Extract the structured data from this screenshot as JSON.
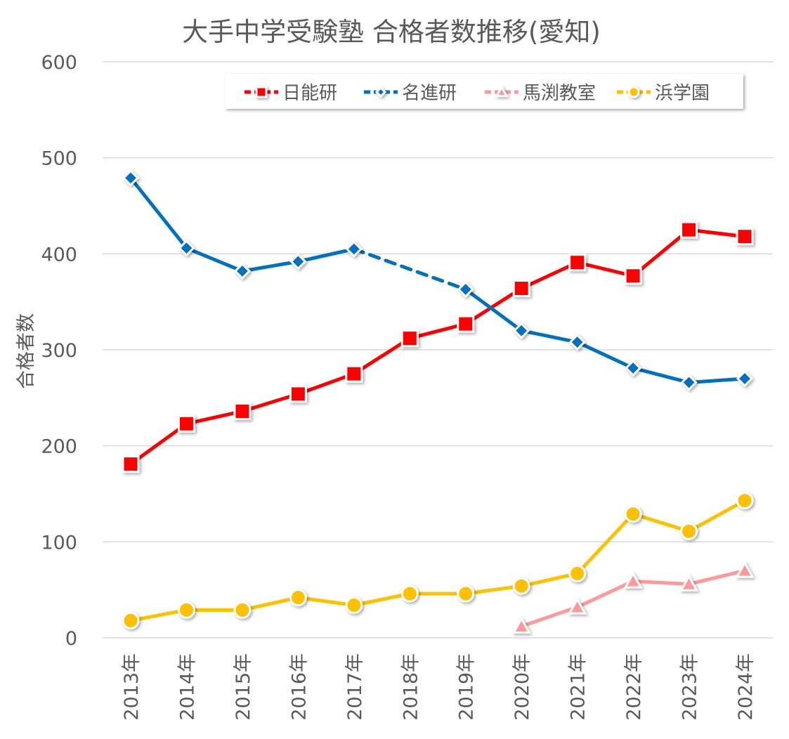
{
  "chart_data": {
    "type": "line",
    "title": "大手中学受験塾 合格者数推移(愛知)",
    "ylabel": "合格者数",
    "xlabel": "",
    "ylim": [
      0,
      600
    ],
    "yticks": [
      0,
      100,
      200,
      300,
      400,
      500,
      600
    ],
    "grid": true,
    "legend_placement": "top-right",
    "categories": [
      "2013年",
      "2014年",
      "2015年",
      "2016年",
      "2017年",
      "2018年",
      "2019年",
      "2020年",
      "2021年",
      "2022年",
      "2023年",
      "2024年"
    ],
    "series": [
      {
        "name": "日能研",
        "color": "#FF0000",
        "marker": "square",
        "values": [
          181,
          223,
          236,
          254,
          275,
          312,
          327,
          364,
          391,
          377,
          425,
          418
        ]
      },
      {
        "name": "名進研",
        "color": "#0070C0",
        "marker": "diamond",
        "values": [
          479,
          406,
          382,
          392,
          405,
          null,
          363,
          320,
          308,
          281,
          266,
          270
        ],
        "dashed_gap": true
      },
      {
        "name": "馬渕教室",
        "color": "#FF9999",
        "marker": "triangle",
        "values": [
          null,
          null,
          null,
          null,
          null,
          null,
          null,
          12,
          32,
          59,
          56,
          70
        ]
      },
      {
        "name": "浜学園",
        "color": "#FFC000",
        "marker": "circle",
        "values": [
          18,
          29,
          29,
          42,
          34,
          46,
          46,
          54,
          67,
          129,
          111,
          143
        ]
      }
    ]
  }
}
